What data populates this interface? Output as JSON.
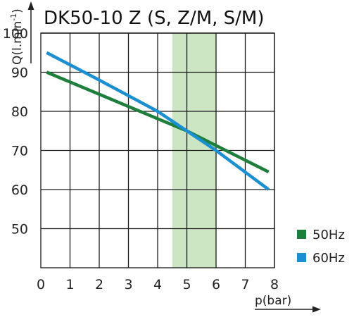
{
  "chart_data": {
    "type": "line",
    "title": "DK50-10 Z (S, Z/M, S/M)",
    "xlabel": "p(bar)",
    "ylabel": "Q(l.min",
    "ylabel_superscript": "-1",
    "ylabel_close": ")",
    "xlim": [
      0,
      8
    ],
    "ylim": [
      40,
      100
    ],
    "x_ticks": [
      "0",
      "1",
      "2",
      "3",
      "4",
      "5",
      "6",
      "7",
      "8"
    ],
    "y_ticks": [
      "50",
      "60",
      "70",
      "80",
      "90",
      "100"
    ],
    "highlight_band": {
      "x": [
        4.5,
        6
      ],
      "color": "#cce6c4"
    },
    "grid": true,
    "legend_placement": "bottom-right",
    "series": [
      {
        "name": "50Hz",
        "color": "#1e7f3c",
        "points": [
          [
            0.2,
            90
          ],
          [
            5,
            75
          ],
          [
            7.8,
            64.5
          ]
        ]
      },
      {
        "name": "60Hz",
        "color": "#1a8fd2",
        "points": [
          [
            0.2,
            95
          ],
          [
            2,
            88
          ],
          [
            4,
            80
          ],
          [
            5,
            75
          ],
          [
            6,
            70
          ],
          [
            7.8,
            60
          ]
        ]
      }
    ]
  }
}
